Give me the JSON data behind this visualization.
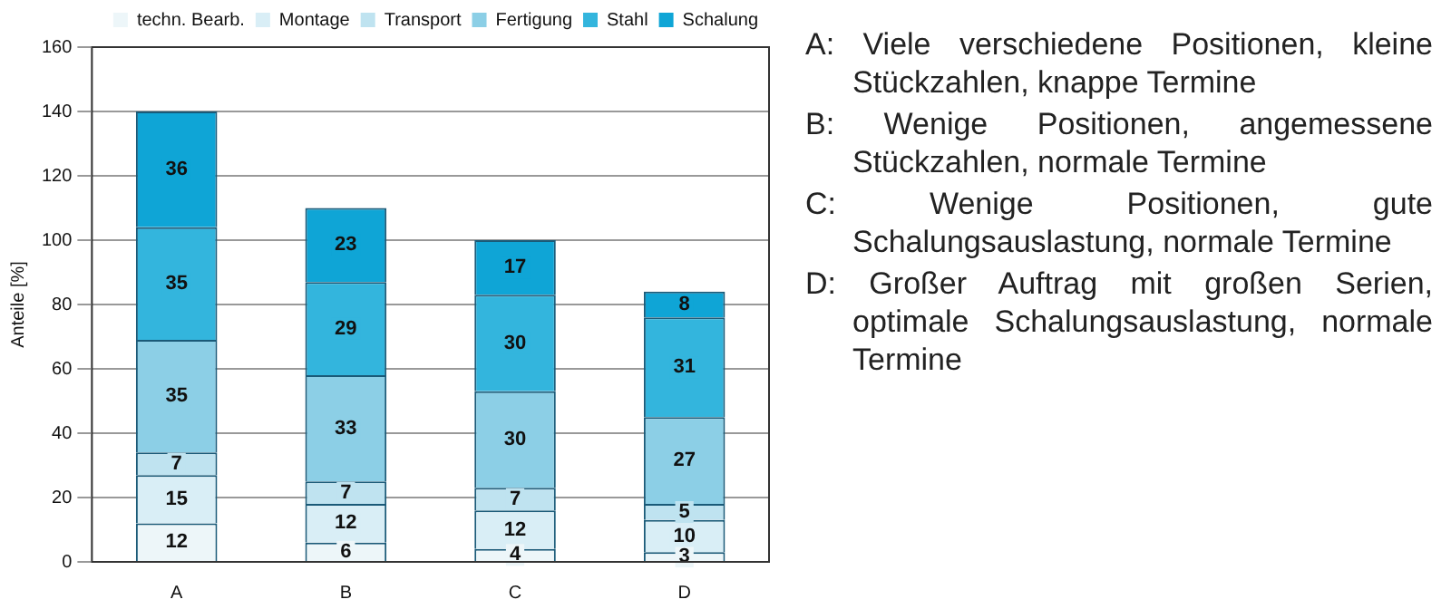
{
  "chart_data": {
    "type": "bar",
    "stacked": true,
    "ylabel": "Anteile [%]",
    "categories": [
      "A",
      "B",
      "C",
      "D"
    ],
    "series": [
      {
        "name": "techn. Bearb.",
        "color": "#edf6f9",
        "values": [
          12,
          6,
          4,
          3
        ]
      },
      {
        "name": "Montage",
        "color": "#d9eef6",
        "values": [
          15,
          12,
          12,
          10
        ]
      },
      {
        "name": "Transport",
        "color": "#bfe3f0",
        "values": [
          7,
          7,
          7,
          5
        ]
      },
      {
        "name": "Fertigung",
        "color": "#8ccfe6",
        "values": [
          35,
          33,
          30,
          27
        ]
      },
      {
        "name": "Stahl",
        "color": "#33b5dd",
        "values": [
          35,
          29,
          30,
          31
        ]
      },
      {
        "name": "Schalung",
        "color": "#0fa5d6",
        "values": [
          36,
          23,
          17,
          8
        ]
      }
    ],
    "ylim": [
      0,
      160
    ],
    "yticks": [
      0,
      20,
      40,
      60,
      80,
      100,
      120,
      140,
      160
    ],
    "grid": "y",
    "legend": "top right",
    "data_labels": true,
    "annotations": [
      "A: Viele verschiedene Positionen, kleine Stückzahlen, knappe Termine",
      "B: Wenige Positionen, angemessene Stückzahlen, normale Termine",
      "C: Wenige Positionen, gute Schalungsauslastung, normale Termine",
      "D: Großer Auftrag mit großen Serien, optimale Schalungsauslastung, normale Termine"
    ]
  }
}
